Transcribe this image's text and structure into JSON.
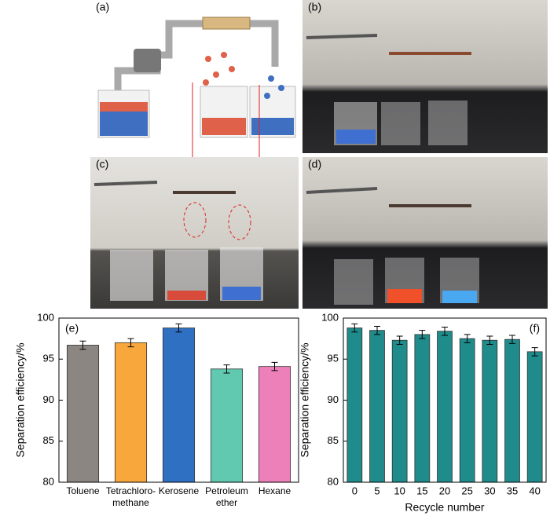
{
  "photo_labels": [
    "(a)",
    "(b)",
    "(c)",
    "(d)"
  ],
  "chart_data": [
    {
      "type": "bar",
      "panel_label": "(e)",
      "ylabel": "Separation efficiency/%",
      "categories": [
        "Toluene",
        "Tetrachloro-\nmethane",
        "Kerosene",
        "Petroleum\nether",
        "Hexane"
      ],
      "values": [
        96.7,
        97.0,
        98.8,
        93.8,
        94.1
      ],
      "errors": [
        0.5,
        0.5,
        0.5,
        0.5,
        0.5
      ],
      "colors": [
        "#8c8682",
        "#f8a73c",
        "#2f70c2",
        "#62c9b1",
        "#ee80b9"
      ],
      "ylim": [
        80,
        100
      ],
      "yticks": [
        80,
        85,
        90,
        95,
        100
      ]
    },
    {
      "type": "bar",
      "panel_label": "(f)",
      "ylabel": "Separation efficiency/%",
      "xlabel": "Recycle number",
      "categories": [
        "0",
        "5",
        "10",
        "15",
        "20",
        "25",
        "30",
        "35",
        "40"
      ],
      "values": [
        98.8,
        98.5,
        97.3,
        98.0,
        98.4,
        97.5,
        97.3,
        97.4,
        95.9
      ],
      "errors": [
        0.5,
        0.5,
        0.5,
        0.5,
        0.5,
        0.5,
        0.5,
        0.5,
        0.5
      ],
      "color": "#1f8b8a",
      "ylim": [
        80,
        100
      ],
      "yticks": [
        80,
        85,
        90,
        95,
        100
      ]
    }
  ]
}
